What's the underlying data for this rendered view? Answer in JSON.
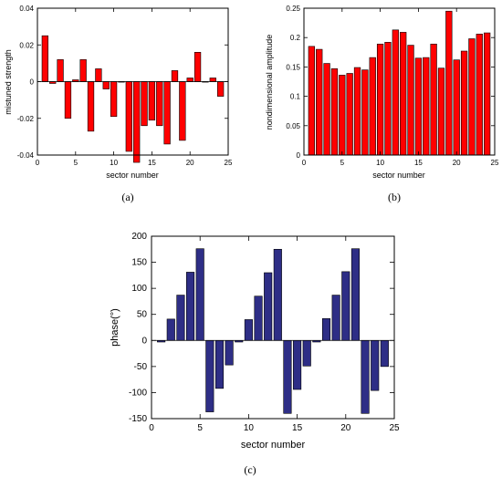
{
  "chart_data": [
    {
      "type": "bar",
      "panel": "(a)",
      "xlabel": "sector number",
      "ylabel": "mistuned strength",
      "xlim": [
        0,
        25
      ],
      "ylim": [
        -0.04,
        0.04
      ],
      "xticks": [
        0,
        5,
        10,
        15,
        20,
        25
      ],
      "yticks": [
        -0.04,
        -0.02,
        0,
        0.02,
        0.04
      ],
      "ytick_labels": [
        "-0.04",
        "-0.02",
        "0",
        "0.02",
        "0.04"
      ],
      "color": "#ff0000",
      "x": [
        1,
        2,
        3,
        4,
        5,
        6,
        7,
        8,
        9,
        10,
        11,
        12,
        13,
        14,
        15,
        16,
        17,
        18,
        19,
        20,
        21,
        22,
        23,
        24
      ],
      "values": [
        0.025,
        -0.001,
        0.012,
        -0.02,
        0.001,
        0.012,
        -0.027,
        0.007,
        -0.004,
        -0.019,
        0.0,
        -0.038,
        -0.044,
        -0.024,
        -0.021,
        -0.024,
        -0.034,
        0.006,
        -0.032,
        0.002,
        0.016,
        0.0,
        0.002,
        -0.008
      ]
    },
    {
      "type": "bar",
      "panel": "(b)",
      "xlabel": "sector number",
      "ylabel": "nondimensional amplitude",
      "xlim": [
        0,
        25
      ],
      "ylim": [
        0,
        0.25
      ],
      "xticks": [
        0,
        5,
        10,
        15,
        20,
        25
      ],
      "yticks": [
        0,
        0.05,
        0.1,
        0.15,
        0.2,
        0.25
      ],
      "ytick_labels": [
        "0",
        "0.05",
        "0.1",
        "0.15",
        "0.2",
        "0.25"
      ],
      "color": "#ff0000",
      "x": [
        1,
        2,
        3,
        4,
        5,
        6,
        7,
        8,
        9,
        10,
        11,
        12,
        13,
        14,
        15,
        16,
        17,
        18,
        19,
        20,
        21,
        22,
        23,
        24
      ],
      "values": [
        0.185,
        0.18,
        0.156,
        0.147,
        0.136,
        0.139,
        0.149,
        0.145,
        0.166,
        0.189,
        0.192,
        0.213,
        0.209,
        0.187,
        0.165,
        0.166,
        0.189,
        0.148,
        0.245,
        0.162,
        0.177,
        0.198,
        0.206,
        0.208
      ]
    },
    {
      "type": "bar",
      "panel": "(c)",
      "xlabel": "sector number",
      "ylabel": "phase(°)",
      "xlim": [
        0,
        25
      ],
      "ylim": [
        -150,
        200
      ],
      "xticks": [
        0,
        5,
        10,
        15,
        20,
        25
      ],
      "yticks": [
        -150,
        -100,
        -50,
        0,
        50,
        100,
        150,
        200
      ],
      "ytick_labels": [
        "-150",
        "-100",
        "-50",
        "0",
        "50",
        "100",
        "150",
        "200"
      ],
      "color": "#2e2e86",
      "x": [
        1,
        2,
        3,
        4,
        5,
        6,
        7,
        8,
        9,
        10,
        11,
        12,
        13,
        14,
        15,
        16,
        17,
        18,
        19,
        20,
        21,
        22,
        23,
        24
      ],
      "values": [
        -3,
        41,
        87,
        131,
        176,
        -137,
        -92,
        -47,
        -3,
        40,
        85,
        130,
        175,
        -140,
        -94,
        -49,
        -3,
        42,
        87,
        132,
        176,
        -140,
        -96,
        -50
      ]
    }
  ]
}
